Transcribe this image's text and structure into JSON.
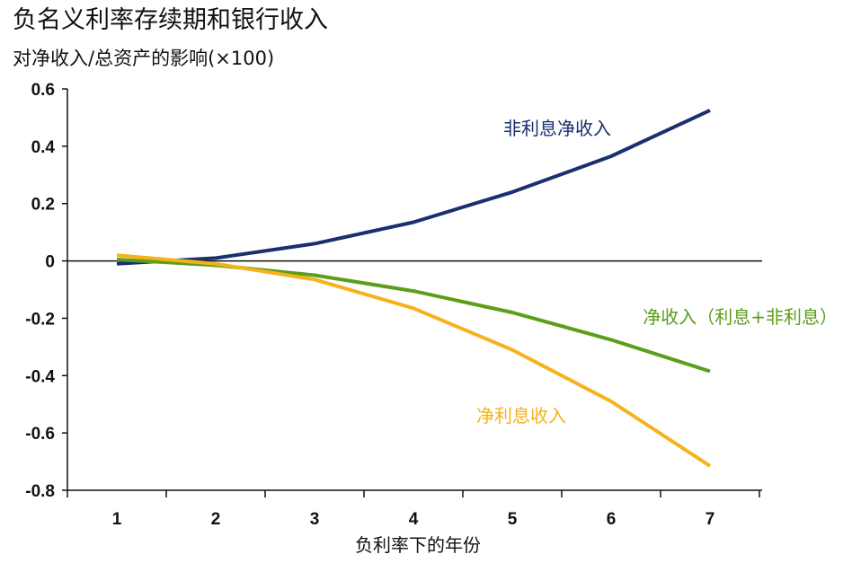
{
  "title": "负名义利率存续期和银行收入",
  "subtitle": "对净收入/总资产的影响(×100)",
  "colors": {
    "navy": "#1b2f6e",
    "green": "#5a9e1a",
    "orange": "#f5b21b"
  },
  "chart_data": {
    "type": "line",
    "title": "负名义利率存续期和银行收入",
    "subtitle": "对净收入/总资产的影响(×100)",
    "xlabel": "负利率下的年份",
    "ylabel": "",
    "x": [
      1,
      2,
      3,
      4,
      5,
      6,
      7
    ],
    "ylim": [
      -0.8,
      0.6
    ],
    "yticks": [
      "0.6",
      "0.4",
      "0.2",
      "0",
      "-0.2",
      "-0.4",
      "-0.6",
      "-0.8"
    ],
    "xticks": [
      "1",
      "2",
      "3",
      "4",
      "5",
      "6",
      "7"
    ],
    "grid": false,
    "series": [
      {
        "name": "非利息净收入",
        "color": "#1b2f6e",
        "values": [
          -0.01,
          0.01,
          0.06,
          0.135,
          0.24,
          0.365,
          0.525
        ]
      },
      {
        "name": "净收入（利息+非利息）",
        "color": "#5a9e1a",
        "values": [
          0.005,
          -0.015,
          -0.05,
          -0.105,
          -0.18,
          -0.275,
          -0.385
        ]
      },
      {
        "name": "净利息收入",
        "color": "#f5b21b",
        "values": [
          0.02,
          -0.01,
          -0.065,
          -0.165,
          -0.31,
          -0.49,
          -0.715
        ]
      }
    ]
  }
}
